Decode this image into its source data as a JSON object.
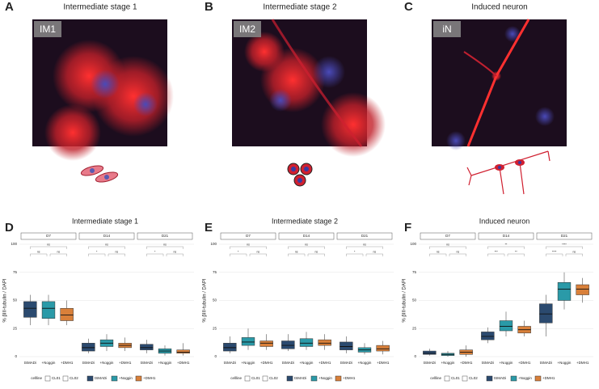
{
  "panels": [
    {
      "letter": "A",
      "title": "Intermediate stage 1",
      "image_label": "IM1"
    },
    {
      "letter": "B",
      "title": "Intermediate stage 2",
      "image_label": "IM2"
    },
    {
      "letter": "C",
      "title": "Induced neuron",
      "image_label": "iN"
    }
  ],
  "chart_data": [
    {
      "type": "box",
      "letter": "D",
      "title": "Intermediate stage 1",
      "ylabel": "% βIII-tubulin / DAPI",
      "ylim": [
        0,
        100
      ],
      "yticks": [
        0,
        25,
        50,
        75,
        100
      ],
      "grid": true,
      "categories": [
        "tSMADi",
        "+Noggin",
        "+DMH1"
      ],
      "facets": [
        {
          "label": "D7",
          "stats": [
            [
              28,
              35,
              43,
              49,
              55
            ],
            [
              28,
              34,
              43,
              49,
              55
            ],
            [
              28,
              32,
              37,
              43,
              50
            ]
          ],
          "comparisons": [
            "ns",
            "ns",
            "ns"
          ]
        },
        {
          "label": "D14",
          "stats": [
            [
              3,
              5,
              8,
              12,
              16
            ],
            [
              5,
              9,
              12,
              15,
              20
            ],
            [
              5,
              8,
              10,
              12,
              17
            ]
          ],
          "comparisons": [
            "*",
            "ns",
            "ns"
          ]
        },
        {
          "label": "D21",
          "stats": [
            [
              3,
              6,
              8,
              11,
              15
            ],
            [
              1,
              3,
              5,
              7,
              10
            ],
            [
              1,
              3,
              4,
              6,
              12
            ]
          ],
          "comparisons": [
            "*",
            "ns",
            "ns"
          ]
        }
      ],
      "legend_title": "cellline",
      "shape_legend": [
        "CL01",
        "CL02"
      ],
      "series": [
        {
          "name": "tSMADi",
          "color": "#2b4a6f"
        },
        {
          "name": "+Noggin",
          "color": "#2a9aa8"
        },
        {
          "name": "+DMH1",
          "color": "#d9803a"
        }
      ]
    },
    {
      "type": "box",
      "letter": "E",
      "title": "Intermediate stage 2",
      "ylabel": "% βIII-tubulin / DAPI",
      "ylim": [
        0,
        100
      ],
      "yticks": [
        0,
        25,
        50,
        75,
        100
      ],
      "grid": true,
      "categories": [
        "tSMADi",
        "+Noggin",
        "+DMH1"
      ],
      "facets": [
        {
          "label": "D7",
          "stats": [
            [
              3,
              5,
              8,
              12,
              18
            ],
            [
              6,
              10,
              13,
              17,
              25
            ],
            [
              6,
              9,
              12,
              14,
              20
            ]
          ],
          "comparisons": [
            "*",
            "ns",
            "ns"
          ]
        },
        {
          "label": "D14",
          "stats": [
            [
              5,
              7,
              10,
              14,
              20
            ],
            [
              6,
              9,
              12,
              16,
              22
            ],
            [
              6,
              10,
              12,
              15,
              20
            ]
          ],
          "comparisons": [
            "ns",
            "ns",
            "ns"
          ]
        },
        {
          "label": "D21",
          "stats": [
            [
              3,
              6,
              9,
              13,
              18
            ],
            [
              2,
              4,
              6,
              8,
              12
            ],
            [
              2,
              5,
              7,
              10,
              14
            ]
          ],
          "comparisons": [
            "*",
            "ns",
            "ns"
          ]
        }
      ],
      "legend_title": "cellline",
      "shape_legend": [
        "CL01",
        "CL02"
      ],
      "series": [
        {
          "name": "tSMADi",
          "color": "#2b4a6f"
        },
        {
          "name": "+Noggin",
          "color": "#2a9aa8"
        },
        {
          "name": "+DMH1",
          "color": "#d9803a"
        }
      ]
    },
    {
      "type": "box",
      "letter": "F",
      "title": "Induced neuron",
      "ylabel": "% βIII-tubulin / DAPI",
      "ylim": [
        0,
        100
      ],
      "yticks": [
        0,
        25,
        50,
        75,
        100
      ],
      "grid": true,
      "categories": [
        "tSMADi",
        "+Noggin",
        "+DMH1"
      ],
      "facets": [
        {
          "label": "D7",
          "stats": [
            [
              1,
              2,
              3,
              5,
              7
            ],
            [
              0,
              1,
              2,
              3,
              5
            ],
            [
              0,
              2,
              4,
              6,
              10
            ]
          ],
          "comparisons": [
            "ns",
            "ns",
            "ns"
          ]
        },
        {
          "label": "D14",
          "stats": [
            [
              12,
              15,
              18,
              22,
              26
            ],
            [
              18,
              23,
              27,
              32,
              40
            ],
            [
              18,
              21,
              24,
              27,
              32
            ]
          ],
          "comparisons": [
            "***",
            "**",
            "**"
          ]
        },
        {
          "label": "D21",
          "stats": [
            [
              18,
              30,
              38,
              47,
              55
            ],
            [
              42,
              50,
              60,
              66,
              75
            ],
            [
              48,
              55,
              60,
              64,
              70
            ]
          ],
          "comparisons": [
            "****",
            "****",
            "ns"
          ]
        }
      ],
      "legend_title": "cellline",
      "shape_legend": [
        "CL01",
        "CL02"
      ],
      "series": [
        {
          "name": "tSMADi",
          "color": "#2b4a6f"
        },
        {
          "name": "+Noggin",
          "color": "#2a9aa8"
        },
        {
          "name": "+DMH1",
          "color": "#d9803a"
        }
      ]
    }
  ]
}
